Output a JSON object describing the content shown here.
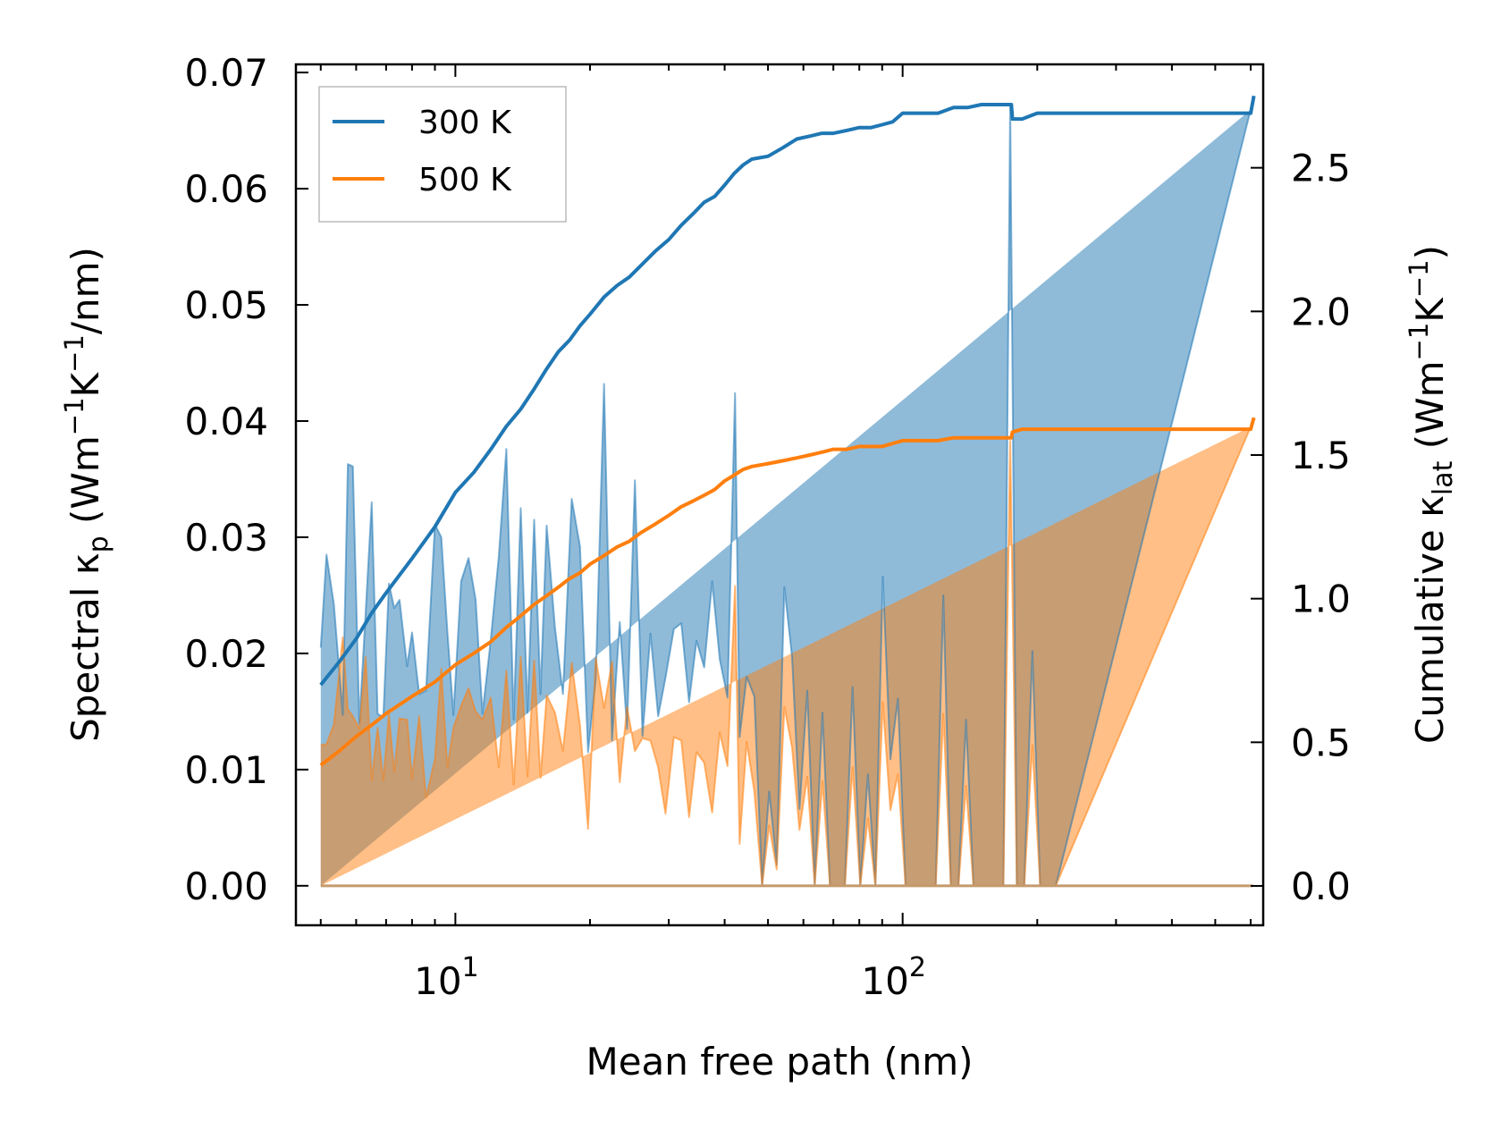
{
  "chart_data": {
    "type": "line",
    "xscale": "log",
    "xlim": [
      4.4,
      640
    ],
    "ylim": [
      -0.0034,
      0.0707
    ],
    "y2lim": [
      -0.137,
      2.86
    ],
    "xlabel": "Mean free path (nm)",
    "ylabel": "Spectral κp (Wm−1K−1/nm)",
    "y2label": "Cumulative κlat (Wm−1K−1)",
    "ylabel_parts": {
      "pre": "Spectral κ",
      "sub": "p",
      "mid": " (Wm",
      "sup1": "−1",
      "k": "K",
      "sup2": "−1",
      "post": "/nm)"
    },
    "y2label_parts": {
      "pre": "Cumulative κ",
      "sub": "lat",
      "mid": " (Wm",
      "sup1": "−1",
      "k": "K",
      "sup2": "−1",
      "post": ")"
    },
    "x_ticks": [
      {
        "value": 10,
        "base": "10",
        "exp": "1"
      },
      {
        "value": 100,
        "base": "10",
        "exp": "2"
      }
    ],
    "y_ticks": [
      {
        "value": 0.0,
        "label": "0.00"
      },
      {
        "value": 0.01,
        "label": "0.01"
      },
      {
        "value": 0.02,
        "label": "0.02"
      },
      {
        "value": 0.03,
        "label": "0.03"
      },
      {
        "value": 0.04,
        "label": "0.04"
      },
      {
        "value": 0.05,
        "label": "0.05"
      },
      {
        "value": 0.06,
        "label": "0.06"
      },
      {
        "value": 0.07,
        "label": "0.07"
      }
    ],
    "y2_ticks": [
      {
        "value": 0.0,
        "label": "0.0"
      },
      {
        "value": 0.5,
        "label": "0.5"
      },
      {
        "value": 1.0,
        "label": "1.0"
      },
      {
        "value": 1.5,
        "label": "1.5"
      },
      {
        "value": 2.0,
        "label": "2.0"
      },
      {
        "value": 2.5,
        "label": "2.5"
      }
    ],
    "legend": {
      "location": "upper-left",
      "entries": [
        "300 K",
        "500 K"
      ]
    },
    "colors": {
      "300 K": "#1f77b4",
      "500 K": "#ff7f0e",
      "fill300": "#1f77b4",
      "fill500": "#ff7f0e"
    },
    "spectral": {
      "x": [
        5.0,
        5.15,
        5.35,
        5.6,
        5.75,
        5.9,
        6.1,
        6.3,
        6.5,
        6.7,
        6.9,
        7.1,
        7.3,
        7.5,
        7.8,
        8.0,
        8.3,
        8.6,
        9.0,
        9.3,
        9.6,
        9.9,
        10.3,
        10.7,
        11.1,
        11.5,
        12.0,
        12.5,
        13.0,
        13.5,
        14.0,
        14.5,
        15.0,
        15.5,
        16.0,
        16.7,
        17.4,
        18.2,
        19.0,
        19.8,
        20.6,
        21.5,
        22.4,
        23.3,
        24.2,
        25.2,
        26.2,
        27.3,
        28.4,
        29.5,
        30.8,
        32.0,
        33.3,
        34.6,
        36.0,
        37.5,
        39.0,
        40.6,
        42.2,
        43.2,
        44.8,
        46.6,
        48.5,
        50.3,
        52.3,
        54.4,
        56.6,
        58.8,
        61.2,
        63.6,
        66.2,
        68.8,
        71.5,
        74.3,
        77.3,
        80.4,
        83.6,
        86.9,
        90.3,
        93.9,
        97.6,
        101.5,
        105.5,
        109.7,
        114.0,
        118.6,
        123.3,
        128.2,
        133.3,
        138.6,
        144.0,
        150.0,
        156.0,
        162.0,
        168.0,
        174.0,
        180.0,
        187.0,
        195.0,
        203.0,
        211.0,
        220.0,
        600.0,
        608.0
      ],
      "k300": [
        0.0205,
        0.0285,
        0.0242,
        0.0147,
        0.0363,
        0.0361,
        0.014,
        0.0235,
        0.033,
        0.0148,
        0.0145,
        0.026,
        0.0239,
        0.0246,
        0.0189,
        0.0218,
        0.0165,
        0.0168,
        0.0311,
        0.03,
        0.0218,
        0.0147,
        0.0262,
        0.0282,
        0.0246,
        0.0148,
        0.0212,
        0.0283,
        0.0376,
        0.0143,
        0.0325,
        0.0149,
        0.0315,
        0.0165,
        0.031,
        0.0222,
        0.0165,
        0.0333,
        0.0292,
        0.0115,
        0.0178,
        0.0432,
        0.0125,
        0.0227,
        0.0135,
        0.0349,
        0.0129,
        0.0217,
        0.0146,
        0.0179,
        0.0221,
        0.0226,
        0.0158,
        0.0211,
        0.0188,
        0.0262,
        0.0195,
        0.0162,
        0.0424,
        0.0128,
        0.018,
        0.0163,
        0.0,
        0.0081,
        0.0018,
        0.0257,
        0.0197,
        0.0066,
        0.0168,
        0.0,
        0.0149,
        0.0,
        0.0,
        0.0,
        0.0171,
        0.0,
        0.0096,
        0.0,
        0.0266,
        0.0109,
        0.0161,
        0.0,
        0.0,
        0.0,
        0.0,
        0.0,
        0.025,
        0.0,
        0.0,
        0.0143,
        0.0,
        0.0,
        0.0,
        0.0,
        0.0,
        0.0673,
        0.0,
        0.0,
        0.0202,
        0.0,
        0.0,
        0.0,
        0.0668
      ],
      "k500": [
        0.0121,
        0.0122,
        0.0139,
        0.0214,
        0.0152,
        0.0146,
        0.0135,
        0.0197,
        0.0091,
        0.0136,
        0.0091,
        0.0148,
        0.0098,
        0.0144,
        0.0143,
        0.0092,
        0.0146,
        0.0076,
        0.0109,
        0.0187,
        0.0102,
        0.0136,
        0.0155,
        0.017,
        0.015,
        0.0143,
        0.0162,
        0.0102,
        0.0185,
        0.0087,
        0.0197,
        0.0094,
        0.0194,
        0.0093,
        0.0164,
        0.0149,
        0.0116,
        0.0192,
        0.0138,
        0.0049,
        0.0196,
        0.0153,
        0.0193,
        0.0089,
        0.0154,
        0.0116,
        0.0127,
        0.0125,
        0.0102,
        0.0062,
        0.0128,
        0.0125,
        0.0059,
        0.0115,
        0.0106,
        0.0063,
        0.0132,
        0.0103,
        0.0258,
        0.0036,
        0.0124,
        0.0081,
        0.0,
        0.0052,
        0.0014,
        0.0154,
        0.0119,
        0.0048,
        0.0094,
        0.0,
        0.009,
        0.0,
        0.0,
        0.0,
        0.0102,
        0.0,
        0.0058,
        0.0,
        0.0158,
        0.0065,
        0.0096,
        0.0,
        0.0,
        0.0,
        0.0,
        0.0,
        0.0148,
        0.0,
        0.0,
        0.0086,
        0.0,
        0.0,
        0.0,
        0.0,
        0.0,
        0.0383,
        0.0,
        0.0,
        0.0121,
        0.0,
        0.0,
        0.0,
        0.0395
      ]
    },
    "cumulative": {
      "300 K": {
        "x": [
          5.0,
          5.5,
          6.0,
          6.5,
          7.0,
          8.0,
          9.0,
          10.0,
          11.0,
          12.0,
          13.0,
          14.0,
          15.0,
          16.0,
          17.0,
          18.0,
          19.0,
          20.0,
          21.5,
          23.0,
          24.5,
          26.0,
          28.0,
          30.0,
          32.0,
          34.0,
          36.0,
          38.0,
          40.0,
          42.0,
          44.0,
          46.0,
          50.0,
          54.0,
          58.0,
          62.0,
          66.0,
          70.0,
          75.0,
          80.0,
          85.0,
          90.0,
          95.0,
          100.0,
          110.0,
          120.0,
          130.0,
          140.0,
          150.0,
          175.0,
          176.0,
          185.0,
          200.0,
          210.0,
          600.0,
          610.0
        ],
        "y": [
          0.7,
          0.78,
          0.86,
          0.95,
          1.02,
          1.14,
          1.25,
          1.37,
          1.44,
          1.52,
          1.6,
          1.66,
          1.73,
          1.8,
          1.86,
          1.9,
          1.95,
          1.99,
          2.05,
          2.09,
          2.12,
          2.16,
          2.21,
          2.25,
          2.3,
          2.34,
          2.38,
          2.4,
          2.44,
          2.48,
          2.51,
          2.53,
          2.54,
          2.57,
          2.6,
          2.61,
          2.62,
          2.62,
          2.63,
          2.64,
          2.64,
          2.65,
          2.66,
          2.69,
          2.69,
          2.69,
          2.71,
          2.71,
          2.72,
          2.72,
          2.67,
          2.67,
          2.69,
          2.69,
          2.69,
          2.75
        ]
      },
      "500 K": {
        "x": [
          5.0,
          5.5,
          6.0,
          6.5,
          7.0,
          8.0,
          9.0,
          10.0,
          11.0,
          12.0,
          13.0,
          14.0,
          15.0,
          16.0,
          17.0,
          18.0,
          19.0,
          20.0,
          21.5,
          23.0,
          24.5,
          26.0,
          28.0,
          30.0,
          32.0,
          34.0,
          36.0,
          38.0,
          40.0,
          42.0,
          44.0,
          46.0,
          50.0,
          54.0,
          58.0,
          62.0,
          66.0,
          70.0,
          75.0,
          80.0,
          85.0,
          90.0,
          95.0,
          100.0,
          110.0,
          120.0,
          130.0,
          140.0,
          150.0,
          175.0,
          176.0,
          185.0,
          200.0,
          210.0,
          600.0,
          610.0
        ],
        "y": [
          0.42,
          0.47,
          0.52,
          0.56,
          0.6,
          0.66,
          0.71,
          0.77,
          0.81,
          0.85,
          0.9,
          0.94,
          0.98,
          1.01,
          1.04,
          1.07,
          1.09,
          1.12,
          1.15,
          1.18,
          1.2,
          1.23,
          1.26,
          1.29,
          1.32,
          1.34,
          1.36,
          1.38,
          1.41,
          1.43,
          1.45,
          1.46,
          1.47,
          1.48,
          1.49,
          1.5,
          1.51,
          1.52,
          1.52,
          1.53,
          1.53,
          1.53,
          1.54,
          1.55,
          1.55,
          1.55,
          1.56,
          1.56,
          1.56,
          1.56,
          1.58,
          1.59,
          1.59,
          1.59,
          1.59,
          1.63
        ]
      }
    }
  }
}
